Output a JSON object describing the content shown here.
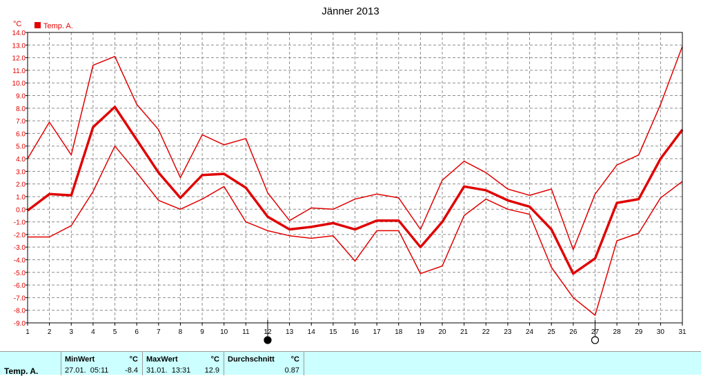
{
  "chart_data": {
    "type": "line",
    "title": "Jänner 2013",
    "ylabel": "°C",
    "legend": {
      "label": "Temp. A.",
      "color": "#e00000",
      "placement": "top-left"
    },
    "x": [
      1,
      2,
      3,
      4,
      5,
      6,
      7,
      8,
      9,
      10,
      11,
      12,
      13,
      14,
      15,
      16,
      17,
      18,
      19,
      20,
      21,
      22,
      23,
      24,
      25,
      26,
      27,
      28,
      29,
      30,
      31
    ],
    "xlim": [
      1,
      31
    ],
    "ylim": [
      -9,
      14
    ],
    "yticks": [
      "14.0",
      "13.0",
      "12.0",
      "11.0",
      "10.0",
      "9.0",
      "8.0",
      "7.0",
      "6.0",
      "5.0",
      "4.0",
      "3.0",
      "2.0",
      "1.0",
      "0.0",
      "-1.0",
      "-2.0",
      "-3.0",
      "-4.0",
      "-5.0",
      "-6.0",
      "-7.0",
      "-8.0",
      "-9.0"
    ],
    "grid": true,
    "series": [
      {
        "values": [
          4.0,
          6.9,
          4.3,
          11.4,
          12.1,
          8.3,
          6.3,
          2.5,
          5.9,
          5.1,
          5.6,
          1.3,
          -0.9,
          0.1,
          0.0,
          0.8,
          1.2,
          0.9,
          -1.6,
          2.3,
          3.8,
          2.9,
          1.6,
          1.1,
          1.6,
          -3.2,
          1.2,
          3.5,
          4.3,
          8.3,
          12.9
        ],
        "width": 1.5
      },
      {
        "values": [
          -0.1,
          1.2,
          1.1,
          6.5,
          8.1,
          5.5,
          2.9,
          0.9,
          2.7,
          2.8,
          1.7,
          -0.6,
          -1.6,
          -1.4,
          -1.1,
          -1.6,
          -0.9,
          -0.9,
          -3.0,
          -1.0,
          1.8,
          1.5,
          0.7,
          0.2,
          -1.6,
          -5.1,
          -3.9,
          0.5,
          0.8,
          4.0,
          6.3
        ],
        "width": 3.5
      },
      {
        "values": [
          -2.2,
          -2.2,
          -1.3,
          1.4,
          5.0,
          2.9,
          0.7,
          0.0,
          0.8,
          1.8,
          -1.0,
          -1.7,
          -2.1,
          -2.3,
          -2.1,
          -4.1,
          -1.7,
          -1.7,
          -5.1,
          -4.5,
          -0.5,
          0.8,
          0.0,
          -0.4,
          -4.6,
          -7.0,
          -8.4,
          -2.5,
          -1.9,
          0.9,
          2.2
        ],
        "width": 1.5
      }
    ],
    "moon_markers": [
      {
        "day": 12,
        "phase": "new"
      },
      {
        "day": 27,
        "phase": "full"
      }
    ]
  },
  "summary": {
    "series_name": "Temp. A.",
    "min": {
      "header": "MinWert",
      "unit": "°C",
      "datetime": "27.01.  05:11",
      "value": "-8.4"
    },
    "max": {
      "header": "MaxWert",
      "unit": "°C",
      "datetime": "31.01.  13:31",
      "value": "12.9"
    },
    "avg": {
      "header": "Durchschnitt",
      "unit": "°C",
      "value": "0.87"
    }
  }
}
